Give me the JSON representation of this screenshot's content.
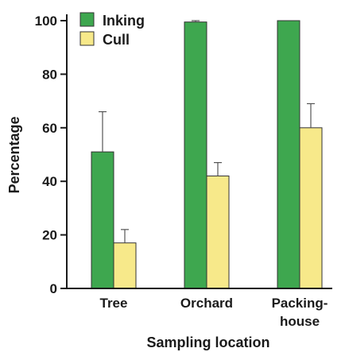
{
  "chart_data": {
    "type": "bar",
    "categories": [
      [
        "Tree"
      ],
      [
        "Orchard"
      ],
      [
        "Packing-",
        "house"
      ]
    ],
    "series": [
      {
        "name": "Inking",
        "values": [
          51,
          99.5,
          100
        ],
        "errors": [
          15,
          0.5,
          0
        ],
        "color": "#3ea74f"
      },
      {
        "name": "Cull",
        "values": [
          17,
          42,
          60
        ],
        "errors": [
          5,
          5,
          9
        ],
        "color": "#f7e98a"
      }
    ],
    "title": "",
    "xlabel": "Sampling location",
    "ylabel": "Percentage",
    "ylim": [
      0,
      100
    ],
    "yticks": [
      0,
      20,
      40,
      60,
      80,
      100
    ],
    "legend_position": "top-left",
    "grid": false
  }
}
